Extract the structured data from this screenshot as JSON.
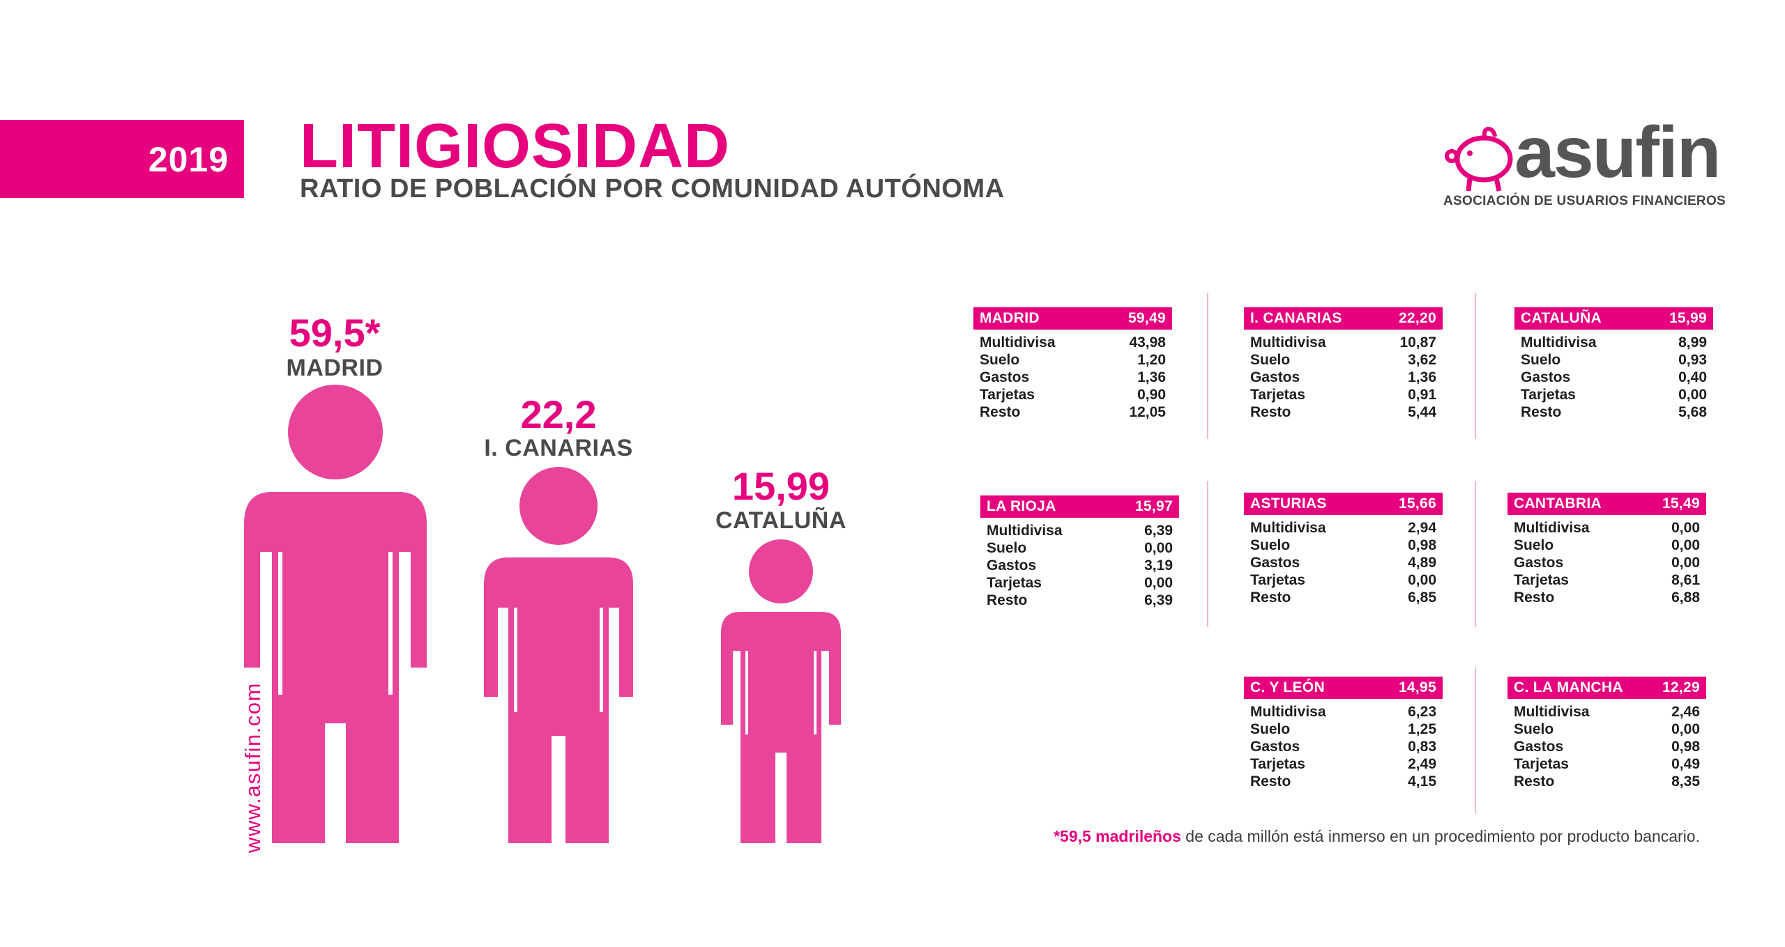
{
  "header": {
    "year": "2019",
    "title": "LITIGIOSIDAD",
    "subtitle": "RATIO DE POBLACIÓN POR COMUNIDAD AUTÓNOMA"
  },
  "logo": {
    "word": "asufin",
    "subtitle": "ASOCIACIÓN DE USUARIOS FINANCIEROS"
  },
  "colors": {
    "accent": "#e6007e",
    "figure": "#e8449a",
    "text": "#3d3d3d"
  },
  "figures": [
    {
      "value": "59,5*",
      "name": "MADRID"
    },
    {
      "value": "22,2",
      "name": "I. CANARIAS"
    },
    {
      "value": "15,99",
      "name": "CATALUÑA"
    }
  ],
  "vertical_link": "www.asufin.com",
  "cards": [
    {
      "region": "MADRID",
      "total": "59,49",
      "rows": [
        {
          "label": "Multidivisa",
          "value": "43,98"
        },
        {
          "label": "Suelo",
          "value": "1,20"
        },
        {
          "label": "Gastos",
          "value": "1,36"
        },
        {
          "label": "Tarjetas",
          "value": "0,90"
        },
        {
          "label": "Resto",
          "value": "12,05"
        }
      ]
    },
    {
      "region": "I. CANARIAS",
      "total": "22,20",
      "rows": [
        {
          "label": "Multidivisa",
          "value": "10,87"
        },
        {
          "label": "Suelo",
          "value": "3,62"
        },
        {
          "label": "Gastos",
          "value": "1,36"
        },
        {
          "label": "Tarjetas",
          "value": "0,91"
        },
        {
          "label": "Resto",
          "value": "5,44"
        }
      ]
    },
    {
      "region": "CATALUÑA",
      "total": "15,99",
      "rows": [
        {
          "label": "Multidivisa",
          "value": "8,99"
        },
        {
          "label": "Suelo",
          "value": "0,93"
        },
        {
          "label": "Gastos",
          "value": "0,40"
        },
        {
          "label": "Tarjetas",
          "value": "0,00"
        },
        {
          "label": "Resto",
          "value": "5,68"
        }
      ]
    },
    {
      "region": "LA RIOJA",
      "total": "15,97",
      "rows": [
        {
          "label": "Multidivisa",
          "value": "6,39"
        },
        {
          "label": "Suelo",
          "value": "0,00"
        },
        {
          "label": "Gastos",
          "value": "3,19"
        },
        {
          "label": "Tarjetas",
          "value": "0,00"
        },
        {
          "label": "Resto",
          "value": "6,39"
        }
      ]
    },
    {
      "region": "ASTURIAS",
      "total": "15,66",
      "rows": [
        {
          "label": "Multidivisa",
          "value": "2,94"
        },
        {
          "label": "Suelo",
          "value": "0,98"
        },
        {
          "label": "Gastos",
          "value": "4,89"
        },
        {
          "label": "Tarjetas",
          "value": "0,00"
        },
        {
          "label": "Resto",
          "value": "6,85"
        }
      ]
    },
    {
      "region": "CANTABRIA",
      "total": "15,49",
      "rows": [
        {
          "label": "Multidivisa",
          "value": "0,00"
        },
        {
          "label": "Suelo",
          "value": "0,00"
        },
        {
          "label": "Gastos",
          "value": "0,00"
        },
        {
          "label": "Tarjetas",
          "value": "8,61"
        },
        {
          "label": "Resto",
          "value": "6,88"
        }
      ]
    },
    {
      "region": "C. Y LEÓN",
      "total": "14,95",
      "rows": [
        {
          "label": "Multidivisa",
          "value": "6,23"
        },
        {
          "label": "Suelo",
          "value": "1,25"
        },
        {
          "label": "Gastos",
          "value": "0,83"
        },
        {
          "label": "Tarjetas",
          "value": "2,49"
        },
        {
          "label": "Resto",
          "value": "4,15"
        }
      ]
    },
    {
      "region": "C. LA MANCHA",
      "total": "12,29",
      "rows": [
        {
          "label": "Multidivisa",
          "value": "2,46"
        },
        {
          "label": "Suelo",
          "value": "0,00"
        },
        {
          "label": "Gastos",
          "value": "0,98"
        },
        {
          "label": "Tarjetas",
          "value": "0,49"
        },
        {
          "label": "Resto",
          "value": "8,35"
        }
      ]
    }
  ],
  "footnote": {
    "highlight": "*59,5 madrileños",
    "text": " de cada millón está inmerso en un procedimiento por producto bancario."
  }
}
